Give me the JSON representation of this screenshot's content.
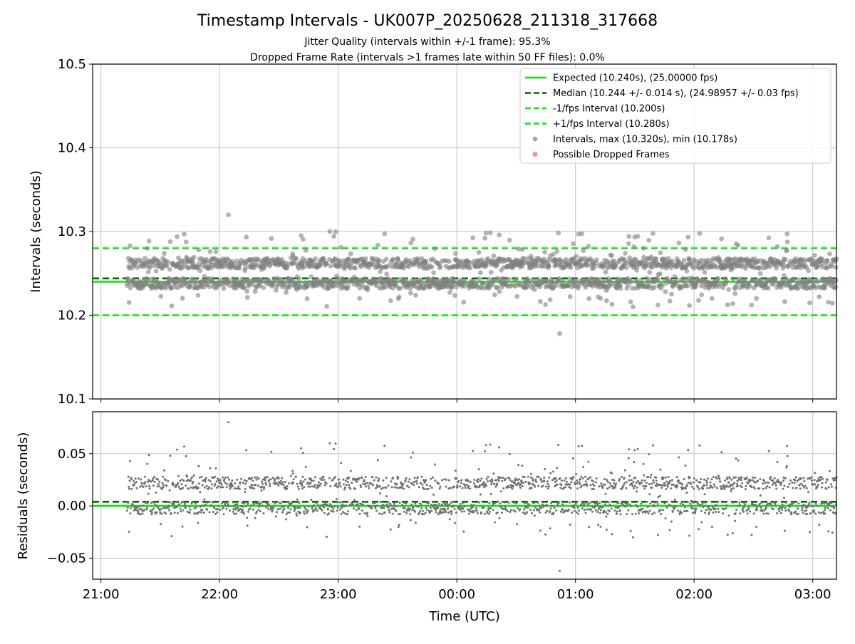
{
  "chart_data": [
    {
      "type": "scatter",
      "title": "Timestamp Intervals - UK007P_20250628_211318_317668",
      "subtitle_lines": [
        "Jitter Quality (intervals within +/-1 frame): 95.3%",
        "Dropped Frame Rate (intervals >1 frames late within 50 FF files): 0.0%"
      ],
      "xlabel": "",
      "ylabel": "Intervals (seconds)",
      "ylim": [
        10.1,
        10.5
      ],
      "yticks": [
        "10.1",
        "10.2",
        "10.3",
        "10.4",
        "10.5"
      ],
      "xlim_hours": [
        20.93,
        27.2
      ],
      "xtick_hours": [
        21,
        22,
        23,
        24,
        25,
        26,
        27
      ],
      "xtick_labels": [],
      "grid": true,
      "legend_location": "top-right",
      "reference_lines": [
        {
          "name": "Expected (10.240s), (25.00000 fps)",
          "y": 10.24,
          "color": "#00ee00",
          "style": "solid"
        },
        {
          "name": "Median (10.244 +/- 0.014 s), (24.98957 +/- 0.03 fps)",
          "y": 10.244,
          "color": "#006400",
          "style": "dashed"
        },
        {
          "name": "-1/fps Interval (10.200s)",
          "y": 10.2,
          "color": "#00ee00",
          "style": "dashed"
        },
        {
          "name": "+1/fps Interval (10.280s)",
          "y": 10.28,
          "color": "#00ee00",
          "style": "dashed"
        }
      ],
      "series": [
        {
          "name": "Intervals, max (10.320s), min (10.178s)",
          "color": "#808080",
          "max": 10.32,
          "min": 10.178,
          "median": 10.244,
          "start_hour": 21.22,
          "end_hour": 27.2,
          "count": 2100
        },
        {
          "name": "Possible Dropped Frames",
          "color": "#ff5555",
          "count": 0
        }
      ]
    },
    {
      "type": "scatter",
      "title": "",
      "xlabel": "Time (UTC)",
      "ylabel": "Residuals (seconds)",
      "ylim": [
        -0.07,
        0.09
      ],
      "yticks": [
        "−0.05",
        "0.00",
        "0.05"
      ],
      "ytick_values": [
        -0.05,
        0.0,
        0.05
      ],
      "xtick_labels": [
        "21:00",
        "22:00",
        "23:00",
        "00:00",
        "01:00",
        "02:00",
        "03:00"
      ],
      "grid": true,
      "reference_lines": [
        {
          "y": 0.0,
          "color": "#00ee00",
          "style": "solid"
        },
        {
          "y": 0.004,
          "color": "#006400",
          "style": "dashed"
        }
      ],
      "series": [
        {
          "color": "#808080",
          "max": 0.08,
          "min": -0.062
        }
      ]
    }
  ]
}
